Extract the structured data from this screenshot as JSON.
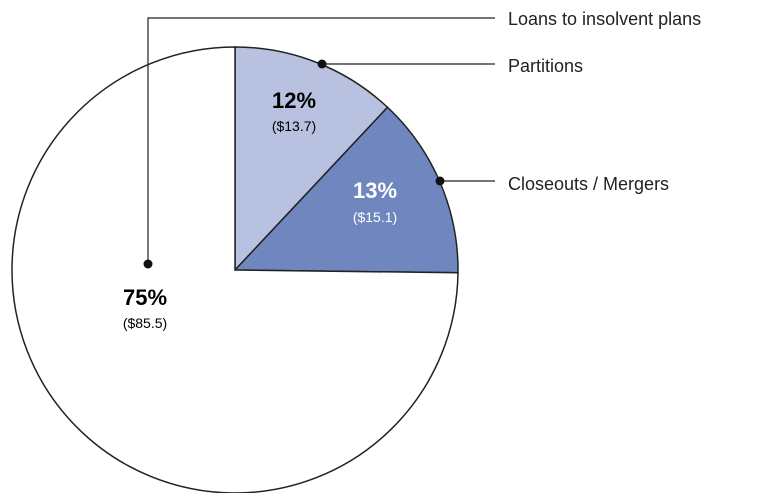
{
  "chart_data": {
    "type": "pie",
    "slices": [
      {
        "label": "Partitions",
        "percent_label": "12%",
        "value_label": "($13.7)",
        "value": 13.7,
        "color": "#b9c1e0",
        "text_color": "#1a1a1a"
      },
      {
        "label": "Closeouts / Mergers",
        "percent_label": "13%",
        "value_label": "($15.1)",
        "value": 15.1,
        "color": "#6f86bf",
        "text_color": "#ffffff"
      },
      {
        "label": "Loans to insolvent plans",
        "percent_label": "75%",
        "value_label": "($85.5)",
        "value": 85.5,
        "color": "#ffffff",
        "text_color": "#1a1a1a"
      }
    ],
    "start_angle": "12 o'clock",
    "direction": "clockwise"
  }
}
